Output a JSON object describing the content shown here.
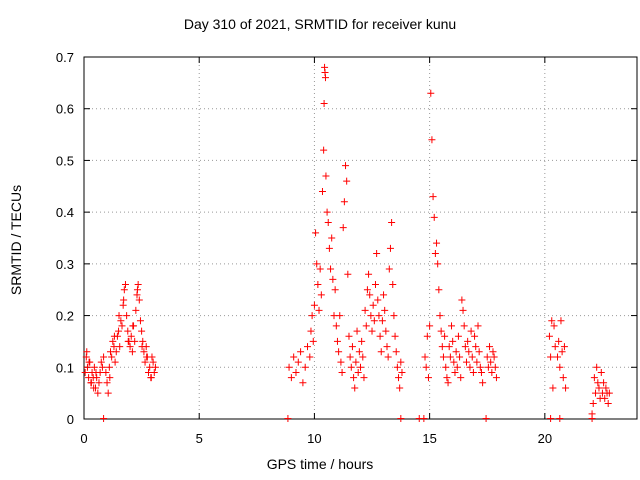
{
  "chart_data": {
    "type": "scatter",
    "title": "Day 310 of 2021, SRMTID for receiver kunu",
    "xlabel": "GPS time / hours",
    "ylabel": "SRMTID / TECUs",
    "xlim": [
      0,
      24
    ],
    "ylim": [
      0,
      0.7
    ],
    "xticks": [
      0,
      5,
      10,
      15,
      20
    ],
    "yticks": [
      0,
      0.1,
      0.2,
      0.3,
      0.4,
      0.5,
      0.6,
      0.7
    ],
    "grid": true,
    "marker": "plus",
    "color": "#ff0000",
    "series": [
      {
        "x": [
          0.05,
          0.1,
          0.15,
          0.2,
          0.25,
          0.3,
          0.35,
          0.4,
          0.45,
          0.5,
          0.55,
          0.6,
          0.65,
          0.7,
          0.75,
          0.8,
          0.85,
          0.95,
          1.0,
          1.05,
          1.1,
          1.15,
          1.2,
          1.25,
          1.3,
          1.35,
          1.4,
          1.45,
          1.5,
          1.55,
          1.6,
          1.65,
          1.7,
          1.75,
          1.8,
          1.85,
          1.9,
          1.95,
          2.0,
          2.05,
          2.1,
          2.15,
          2.2,
          2.25,
          2.3,
          2.35,
          2.4,
          2.45,
          2.5,
          2.55,
          2.6,
          2.65,
          2.7,
          2.75,
          2.8,
          2.85,
          2.9,
          2.95,
          3.0,
          3.05,
          3.1,
          0.12,
          0.22,
          0.32,
          0.42,
          0.52,
          1.12,
          1.32,
          1.52,
          1.72,
          1.92,
          2.12,
          2.32,
          2.52,
          2.72,
          2.92,
          8.9,
          9.0,
          9.1,
          9.2,
          9.3,
          9.4,
          9.5,
          9.6,
          9.7,
          9.8,
          9.85,
          9.9,
          9.95,
          10.0,
          10.05,
          10.1,
          10.15,
          10.2,
          10.25,
          10.3,
          10.35,
          10.4,
          10.42,
          10.44,
          10.46,
          10.48,
          10.5,
          10.55,
          10.6,
          10.65,
          10.7,
          10.75,
          10.8,
          10.85,
          10.9,
          10.95,
          11.0,
          11.05,
          11.1,
          11.15,
          11.2,
          11.25,
          11.3,
          11.35,
          11.4,
          11.45,
          11.5,
          11.55,
          11.6,
          11.65,
          11.7,
          11.75,
          11.8,
          11.85,
          11.9,
          11.95,
          12.0,
          12.05,
          12.1,
          12.15,
          12.2,
          12.25,
          12.3,
          12.35,
          12.4,
          12.45,
          12.5,
          12.55,
          12.6,
          12.65,
          12.7,
          12.75,
          12.8,
          12.85,
          12.9,
          12.95,
          13.0,
          13.05,
          13.1,
          13.15,
          13.2,
          13.25,
          13.3,
          13.35,
          13.4,
          13.45,
          13.5,
          13.55,
          13.6,
          13.65,
          13.7,
          13.75,
          13.8,
          14.8,
          14.85,
          14.9,
          14.95,
          15.0,
          15.05,
          15.1,
          15.15,
          15.2,
          15.25,
          15.3,
          15.35,
          15.4,
          15.45,
          15.5,
          15.55,
          15.6,
          15.65,
          15.7,
          15.75,
          15.8,
          15.85,
          15.9,
          15.95,
          16.0,
          16.05,
          16.1,
          16.15,
          16.2,
          16.25,
          16.3,
          16.35,
          16.4,
          16.45,
          16.5,
          16.55,
          16.6,
          16.65,
          16.7,
          16.75,
          16.8,
          16.85,
          16.9,
          16.95,
          17.0,
          17.05,
          17.1,
          17.15,
          17.2,
          17.25,
          17.3,
          17.5,
          17.55,
          17.6,
          17.65,
          17.7,
          17.75,
          17.8,
          17.85,
          17.9,
          20.2,
          20.25,
          20.3,
          20.35,
          20.4,
          20.45,
          20.55,
          20.6,
          20.65,
          20.7,
          20.75,
          20.8,
          20.85,
          20.9,
          22.05,
          22.1,
          22.15,
          22.2,
          22.25,
          22.3,
          22.35,
          22.4,
          22.45,
          22.5,
          22.55,
          22.6,
          22.65,
          22.7,
          22.75,
          22.8
        ],
        "y": [
          0.09,
          0.12,
          0.1,
          0.08,
          0.11,
          0.07,
          0.09,
          0.08,
          0.1,
          0.06,
          0.08,
          0.05,
          0.07,
          0.09,
          0.11,
          0.1,
          0.12,
          0.09,
          0.07,
          0.05,
          0.1,
          0.13,
          0.12,
          0.15,
          0.14,
          0.11,
          0.13,
          0.16,
          0.17,
          0.14,
          0.19,
          0.18,
          0.22,
          0.25,
          0.26,
          0.2,
          0.17,
          0.15,
          0.14,
          0.16,
          0.13,
          0.18,
          0.15,
          0.21,
          0.24,
          0.26,
          0.23,
          0.19,
          0.17,
          0.15,
          0.13,
          0.11,
          0.14,
          0.12,
          0.09,
          0.1,
          0.08,
          0.12,
          0.11,
          0.09,
          0.1,
          0.13,
          0.11,
          0.07,
          0.06,
          0.09,
          0.08,
          0.16,
          0.2,
          0.23,
          0.15,
          0.18,
          0.25,
          0.14,
          0.12,
          0.08,
          0.1,
          0.08,
          0.12,
          0.09,
          0.11,
          0.13,
          0.07,
          0.1,
          0.14,
          0.12,
          0.17,
          0.2,
          0.15,
          0.22,
          0.36,
          0.3,
          0.26,
          0.21,
          0.29,
          0.24,
          0.44,
          0.52,
          0.61,
          0.68,
          0.67,
          0.66,
          0.47,
          0.4,
          0.38,
          0.33,
          0.29,
          0.35,
          0.27,
          0.2,
          0.25,
          0.18,
          0.15,
          0.13,
          0.2,
          0.11,
          0.09,
          0.37,
          0.42,
          0.49,
          0.46,
          0.28,
          0.16,
          0.12,
          0.1,
          0.14,
          0.08,
          0.06,
          0.11,
          0.17,
          0.09,
          0.13,
          0.1,
          0.15,
          0.12,
          0.08,
          0.21,
          0.18,
          0.25,
          0.28,
          0.24,
          0.2,
          0.17,
          0.22,
          0.19,
          0.26,
          0.32,
          0.23,
          0.2,
          0.16,
          0.13,
          0.19,
          0.24,
          0.21,
          0.17,
          0.14,
          0.12,
          0.29,
          0.33,
          0.38,
          0.26,
          0.2,
          0.16,
          0.13,
          0.1,
          0.08,
          0.06,
          0.11,
          0.09,
          0.12,
          0.1,
          0.16,
          0.08,
          0.18,
          0.63,
          0.54,
          0.43,
          0.39,
          0.32,
          0.34,
          0.3,
          0.25,
          0.2,
          0.17,
          0.14,
          0.12,
          0.16,
          0.1,
          0.08,
          0.07,
          0.14,
          0.12,
          0.18,
          0.15,
          0.11,
          0.09,
          0.13,
          0.1,
          0.16,
          0.12,
          0.08,
          0.23,
          0.21,
          0.18,
          0.14,
          0.11,
          0.15,
          0.13,
          0.1,
          0.17,
          0.12,
          0.09,
          0.16,
          0.14,
          0.11,
          0.18,
          0.13,
          0.1,
          0.09,
          0.07,
          0.12,
          0.1,
          0.14,
          0.11,
          0.09,
          0.13,
          0.12,
          0.1,
          0.08,
          0.16,
          0.12,
          0.19,
          0.06,
          0.18,
          0.14,
          0.12,
          0.15,
          0.1,
          0.19,
          0.13,
          0.08,
          0.14,
          0.06,
          0.01,
          0.03,
          0.08,
          0.05,
          0.1,
          0.07,
          0.06,
          0.04,
          0.09,
          0.05,
          0.07,
          0.04,
          0.06,
          0.05,
          0.03,
          0.05
        ]
      },
      {
        "x": [
          0.85,
          8.85,
          13.75,
          14.55,
          14.75,
          17.45,
          20.25,
          20.65,
          22.05
        ],
        "y": [
          0,
          0,
          0,
          0,
          0,
          0,
          0,
          0,
          0
        ]
      }
    ]
  }
}
